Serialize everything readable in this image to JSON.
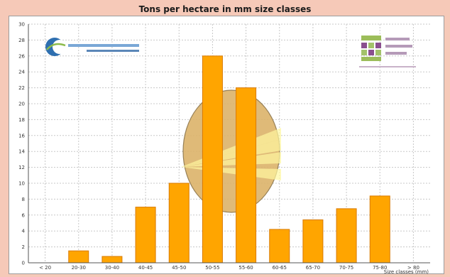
{
  "chart_data": {
    "type": "bar",
    "title": "Tons per hectare in mm size classes",
    "xlabel": "",
    "ylabel": "",
    "categories": [
      "< 20",
      "20-30",
      "30-40",
      "40-45",
      "45-50",
      "50-55",
      "55-60",
      "60-65",
      "65-70",
      "70-75",
      "75-80",
      "> 80"
    ],
    "values": [
      0,
      1.5,
      0.8,
      7.0,
      10.0,
      26.0,
      22.0,
      4.2,
      5.4,
      6.8,
      8.4,
      0
    ],
    "ylim": [
      0,
      30
    ],
    "yticks": [
      0,
      2,
      4,
      6,
      8,
      10,
      12,
      14,
      16,
      18,
      20,
      22,
      24,
      26,
      28,
      30
    ],
    "x_unit_label": "Size classes (mm)",
    "grid": true,
    "colors": {
      "bar": "#ffa500",
      "bar_edge": "#d97a00",
      "grid": "#c8c8c8",
      "background": "#f6c9b8",
      "potato_fill": "#dcb36a",
      "potato_edge": "#8c7345",
      "sun_glow": "#fff8a0",
      "logo_blue": "#2e6fb0",
      "logo_green": "#8dbb4c",
      "logo_purple": "#8a4f8f"
    },
    "logos": [
      "potato-logo",
      "company-logo-left",
      "company-logo-right"
    ]
  }
}
